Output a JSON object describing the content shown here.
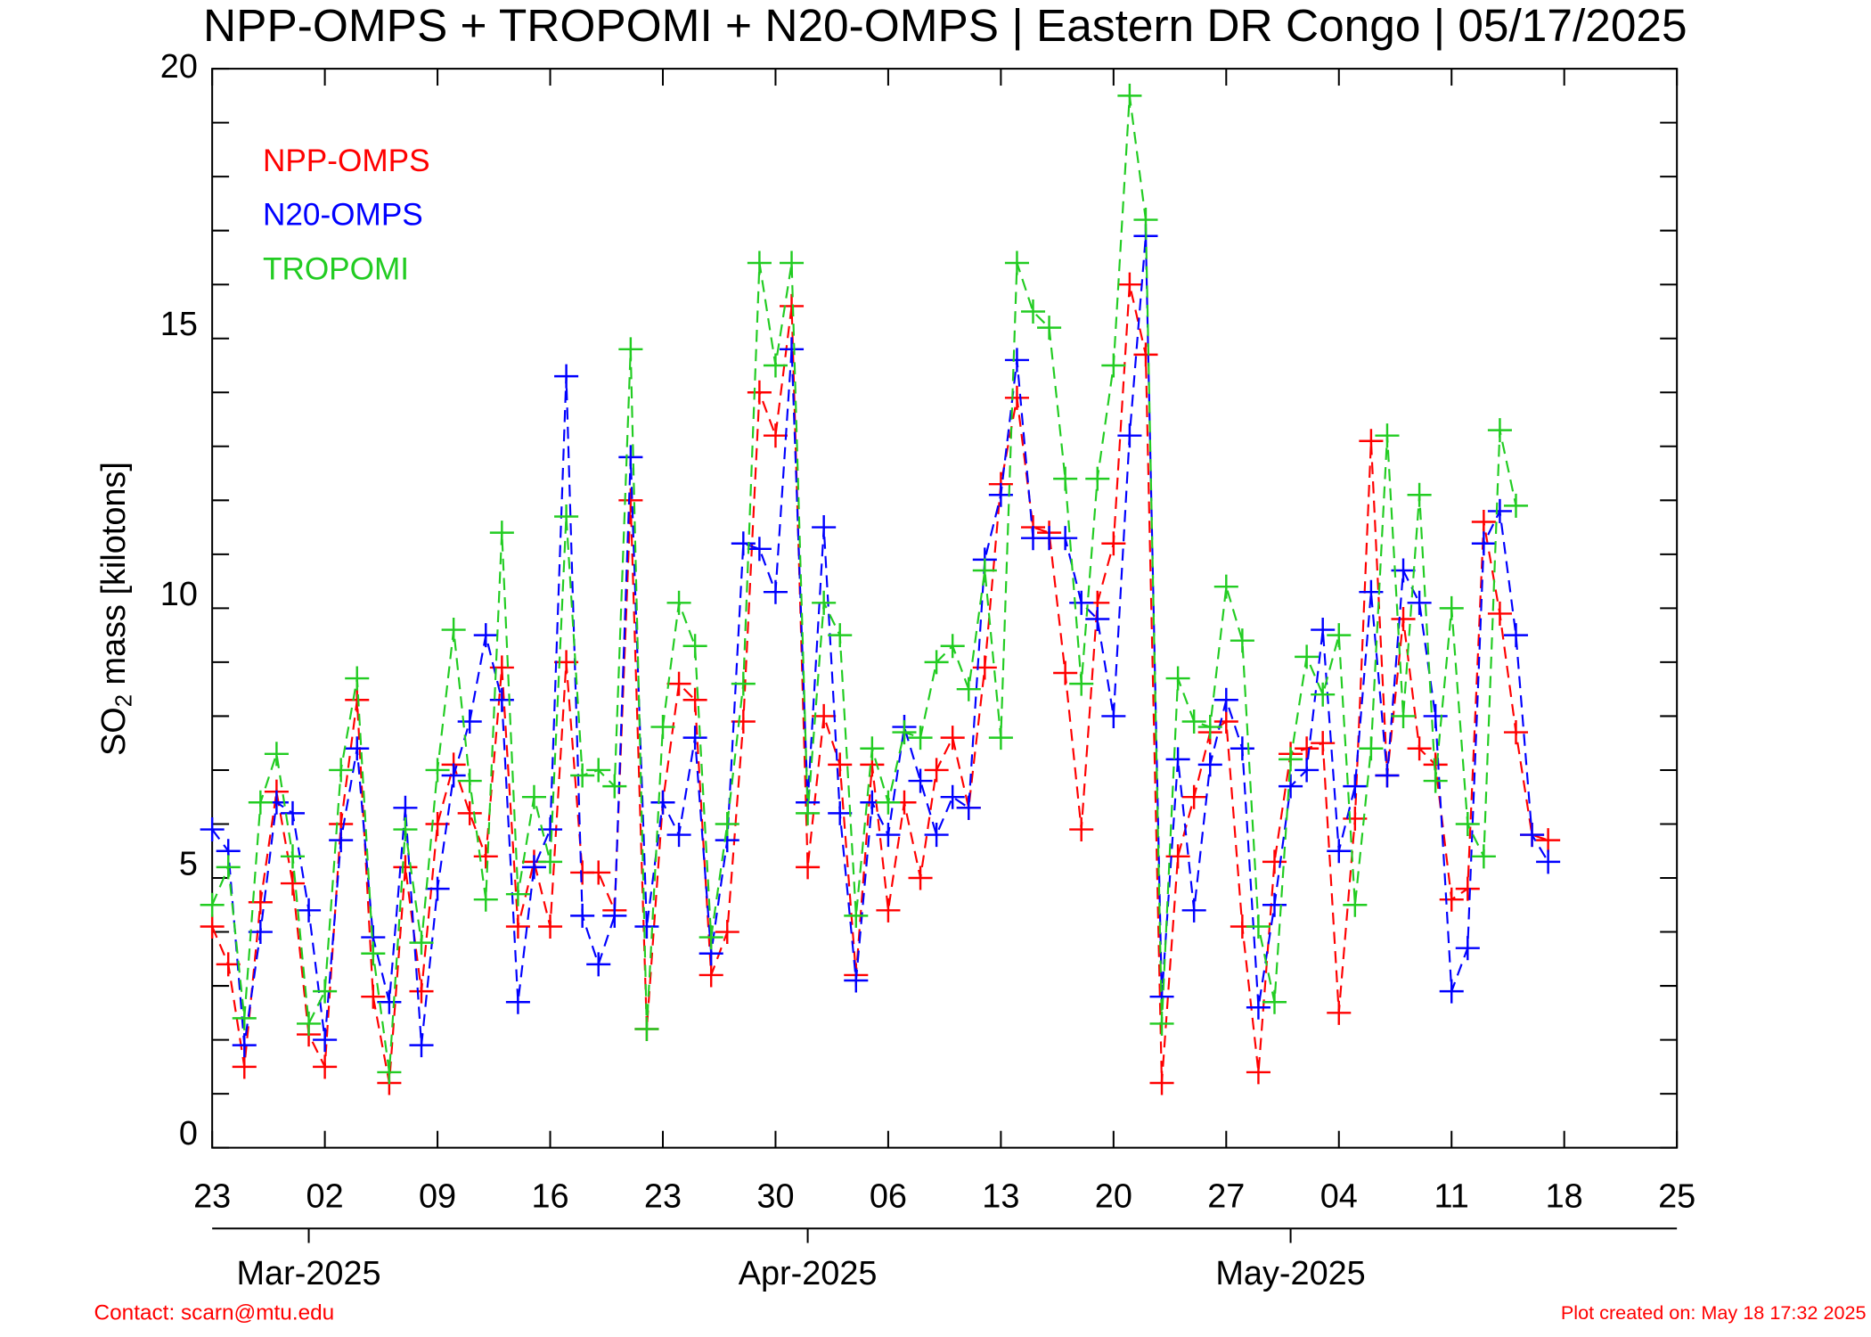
{
  "chart_data": {
    "type": "line",
    "title": "NPP-OMPS + TROPOMI + N20-OMPS | Eastern DR Congo | 05/17/2025",
    "ylabel_parts": [
      "SO",
      "2",
      " mass [kilotons]"
    ],
    "contact": "Contact: scarn@mtu.edu",
    "created": "Plot created on: May 18 17:32 2025",
    "xlim": [
      "2025-02-23",
      "2025-05-25"
    ],
    "xticks": [
      {
        "value": "2025-02-23",
        "label": "23"
      },
      {
        "value": "2025-03-02",
        "label": "02"
      },
      {
        "value": "2025-03-09",
        "label": "09"
      },
      {
        "value": "2025-03-16",
        "label": "16"
      },
      {
        "value": "2025-03-23",
        "label": "23"
      },
      {
        "value": "2025-03-30",
        "label": "30"
      },
      {
        "value": "2025-04-06",
        "label": "06"
      },
      {
        "value": "2025-04-13",
        "label": "13"
      },
      {
        "value": "2025-04-20",
        "label": "20"
      },
      {
        "value": "2025-04-27",
        "label": "27"
      },
      {
        "value": "2025-05-04",
        "label": "04"
      },
      {
        "value": "2025-05-11",
        "label": "11"
      },
      {
        "value": "2025-05-18",
        "label": "18"
      },
      {
        "value": "2025-05-25",
        "label": "25"
      }
    ],
    "month_ticks": [
      {
        "value": "2025-03-01",
        "label": "Mar-2025"
      },
      {
        "value": "2025-04-01",
        "label": "Apr-2025"
      },
      {
        "value": "2025-05-01",
        "label": "May-2025"
      }
    ],
    "ylim": [
      0,
      20
    ],
    "yticks": [
      0,
      5,
      10,
      15,
      20
    ],
    "yminorticks": [
      1,
      2,
      3,
      4,
      6,
      7,
      8,
      9,
      11,
      12,
      13,
      14,
      16,
      17,
      18,
      19
    ],
    "x": [
      "2025-02-23",
      "2025-02-24",
      "2025-02-25",
      "2025-02-26",
      "2025-02-27",
      "2025-02-28",
      "2025-03-01",
      "2025-03-02",
      "2025-03-03",
      "2025-03-04",
      "2025-03-05",
      "2025-03-06",
      "2025-03-07",
      "2025-03-08",
      "2025-03-09",
      "2025-03-10",
      "2025-03-11",
      "2025-03-12",
      "2025-03-13",
      "2025-03-14",
      "2025-03-15",
      "2025-03-16",
      "2025-03-17",
      "2025-03-18",
      "2025-03-19",
      "2025-03-20",
      "2025-03-21",
      "2025-03-22",
      "2025-03-23",
      "2025-03-24",
      "2025-03-25",
      "2025-03-26",
      "2025-03-27",
      "2025-03-28",
      "2025-03-29",
      "2025-03-30",
      "2025-03-31",
      "2025-04-01",
      "2025-04-02",
      "2025-04-03",
      "2025-04-04",
      "2025-04-05",
      "2025-04-06",
      "2025-04-07",
      "2025-04-08",
      "2025-04-09",
      "2025-04-10",
      "2025-04-11",
      "2025-04-12",
      "2025-04-13",
      "2025-04-14",
      "2025-04-15",
      "2025-04-16",
      "2025-04-17",
      "2025-04-18",
      "2025-04-19",
      "2025-04-20",
      "2025-04-21",
      "2025-04-22",
      "2025-04-23",
      "2025-04-24",
      "2025-04-25",
      "2025-04-26",
      "2025-04-27",
      "2025-04-28",
      "2025-04-29",
      "2025-04-30",
      "2025-05-01",
      "2025-05-02",
      "2025-05-03",
      "2025-05-04",
      "2025-05-05",
      "2025-05-06",
      "2025-05-07",
      "2025-05-08",
      "2025-05-09",
      "2025-05-10",
      "2025-05-11",
      "2025-05-12",
      "2025-05-13",
      "2025-05-14",
      "2025-05-15",
      "2025-05-16",
      "2025-05-17"
    ],
    "series": [
      {
        "name": "NPP-OMPS",
        "color": "#ff0000",
        "values": [
          4.1,
          3.4,
          1.5,
          4.55,
          6.6,
          4.9,
          2.1,
          1.5,
          6.0,
          8.3,
          2.8,
          1.2,
          5.2,
          2.9,
          6.0,
          7.1,
          6.2,
          5.4,
          8.9,
          4.1,
          5.3,
          4.1,
          9.0,
          5.1,
          5.1,
          4.4,
          12.0,
          2.2,
          6.4,
          8.6,
          8.3,
          3.2,
          4.0,
          7.9,
          14.0,
          13.2,
          15.6,
          5.2,
          8.0,
          7.1,
          3.2,
          7.1,
          4.4,
          6.4,
          5.0,
          7.0,
          7.6,
          6.3,
          8.9,
          12.3,
          13.9,
          11.5,
          11.4,
          8.8,
          5.9,
          10.1,
          11.2,
          16.0,
          14.7,
          1.2,
          5.4,
          6.5,
          7.7,
          7.9,
          4.1,
          1.4,
          5.3,
          7.3,
          7.4,
          7.5,
          2.5,
          6.1,
          13.1,
          6.9,
          9.8,
          7.4,
          7.1,
          4.6,
          4.8,
          11.6,
          9.9,
          7.7,
          5.8,
          5.7
        ]
      },
      {
        "name": "N20-OMPS",
        "color": "#0000ff",
        "values": [
          5.9,
          5.5,
          1.9,
          4.0,
          6.4,
          6.2,
          4.4,
          2.0,
          5.7,
          7.4,
          3.9,
          2.7,
          6.3,
          1.9,
          4.8,
          6.9,
          7.9,
          9.5,
          8.3,
          2.7,
          5.2,
          5.9,
          14.3,
          4.3,
          3.4,
          4.3,
          12.8,
          4.1,
          6.4,
          5.8,
          7.6,
          3.6,
          5.7,
          11.2,
          11.1,
          10.3,
          14.8,
          6.4,
          11.5,
          6.2,
          3.1,
          6.4,
          5.8,
          7.8,
          6.8,
          5.8,
          6.5,
          6.3,
          10.9,
          12.1,
          14.6,
          11.3,
          11.3,
          11.3,
          10.1,
          9.8,
          8.0,
          13.2,
          16.9,
          2.8,
          7.2,
          4.4,
          7.1,
          8.3,
          7.4,
          2.6,
          4.5,
          6.7,
          7.0,
          9.6,
          5.5,
          6.7,
          10.3,
          6.9,
          10.7,
          10.1,
          8.0,
          2.9,
          3.7,
          11.2,
          11.8,
          9.5,
          5.8,
          5.3
        ]
      },
      {
        "name": "TROPOMI",
        "color": "#22cc22",
        "values": [
          4.5,
          5.2,
          2.4,
          6.4,
          7.3,
          5.4,
          2.3,
          2.9,
          7.0,
          8.7,
          3.6,
          1.4,
          5.9,
          3.8,
          7.0,
          9.6,
          6.8,
          4.6,
          11.4,
          4.7,
          6.5,
          5.3,
          11.7,
          6.9,
          7.0,
          6.7,
          14.8,
          2.2,
          7.8,
          10.1,
          9.3,
          3.9,
          6.0,
          8.6,
          16.4,
          14.5,
          16.4,
          6.2,
          10.1,
          9.5,
          4.3,
          7.4,
          6.4,
          7.7,
          7.6,
          9.0,
          9.3,
          8.5,
          10.7,
          7.6,
          16.4,
          15.5,
          15.2,
          12.4,
          8.6,
          12.4,
          14.5,
          19.5,
          17.2,
          2.3,
          8.7,
          7.9,
          7.8,
          10.4,
          9.4,
          4.1,
          2.7,
          7.2,
          9.1,
          8.4,
          9.5,
          4.5,
          7.4,
          13.2,
          8.0,
          12.1,
          6.8,
          10.0,
          6.0,
          5.4,
          13.3,
          11.9,
          null,
          null
        ]
      }
    ]
  }
}
